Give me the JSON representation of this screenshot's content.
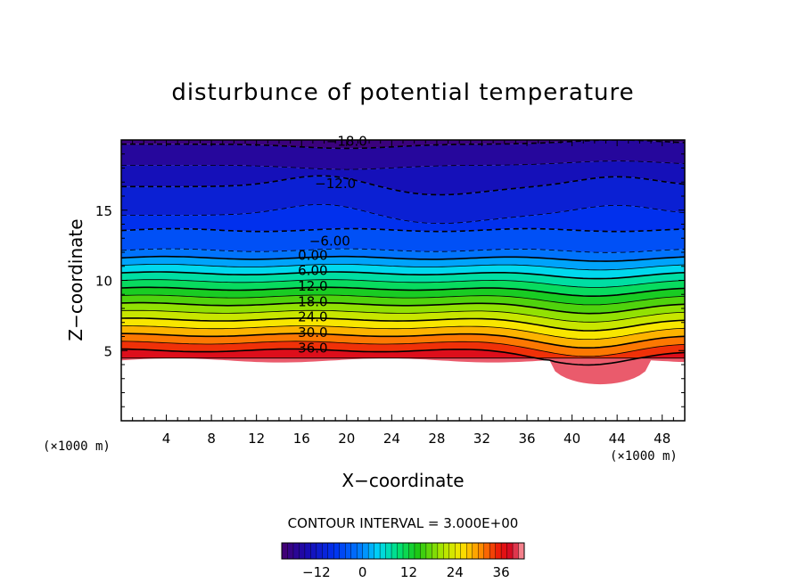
{
  "chart_data": {
    "type": "contour",
    "title": "disturbunce of potential temperature",
    "xlabel": "X−coordinate",
    "ylabel": "Z−coordinate",
    "x_unit_left": "(×1000 m)",
    "x_unit_right": "(×1000 m)",
    "xlim": [
      0,
      50
    ],
    "ylim": [
      0,
      20
    ],
    "x_ticks": [
      4,
      8,
      12,
      16,
      20,
      24,
      28,
      32,
      36,
      40,
      44,
      48
    ],
    "y_ticks": [
      5,
      10,
      15
    ],
    "contour_interval_text": "CONTOUR INTERVAL = 3.000E+00",
    "contour_labels": [
      {
        "text": "−18.0",
        "value": -18,
        "x": 20,
        "z": 19.7
      },
      {
        "text": "−12.0",
        "value": -12,
        "x": 19,
        "z": 16.7
      },
      {
        "text": "−6.00",
        "value": -6,
        "x": 18.5,
        "z": 12.6
      },
      {
        "text": "0.00",
        "value": 0,
        "x": 17,
        "z": 11.6
      },
      {
        "text": "6.00",
        "value": 6,
        "x": 17,
        "z": 10.5
      },
      {
        "text": "12.0",
        "value": 12,
        "x": 17,
        "z": 9.4
      },
      {
        "text": "18.0",
        "value": 18,
        "x": 17,
        "z": 8.3
      },
      {
        "text": "24.0",
        "value": 24,
        "x": 17,
        "z": 7.2
      },
      {
        "text": "30.0",
        "value": 30,
        "x": 17,
        "z": 6.1
      },
      {
        "text": "36.0",
        "value": 36,
        "x": 17,
        "z": 5.0
      }
    ],
    "colorbar": {
      "min": -21,
      "max": 42,
      "tick_values": [
        -12,
        0,
        12,
        24,
        36
      ],
      "tick_labels": [
        "−12",
        "0",
        "12",
        "24",
        "36"
      ]
    }
  }
}
